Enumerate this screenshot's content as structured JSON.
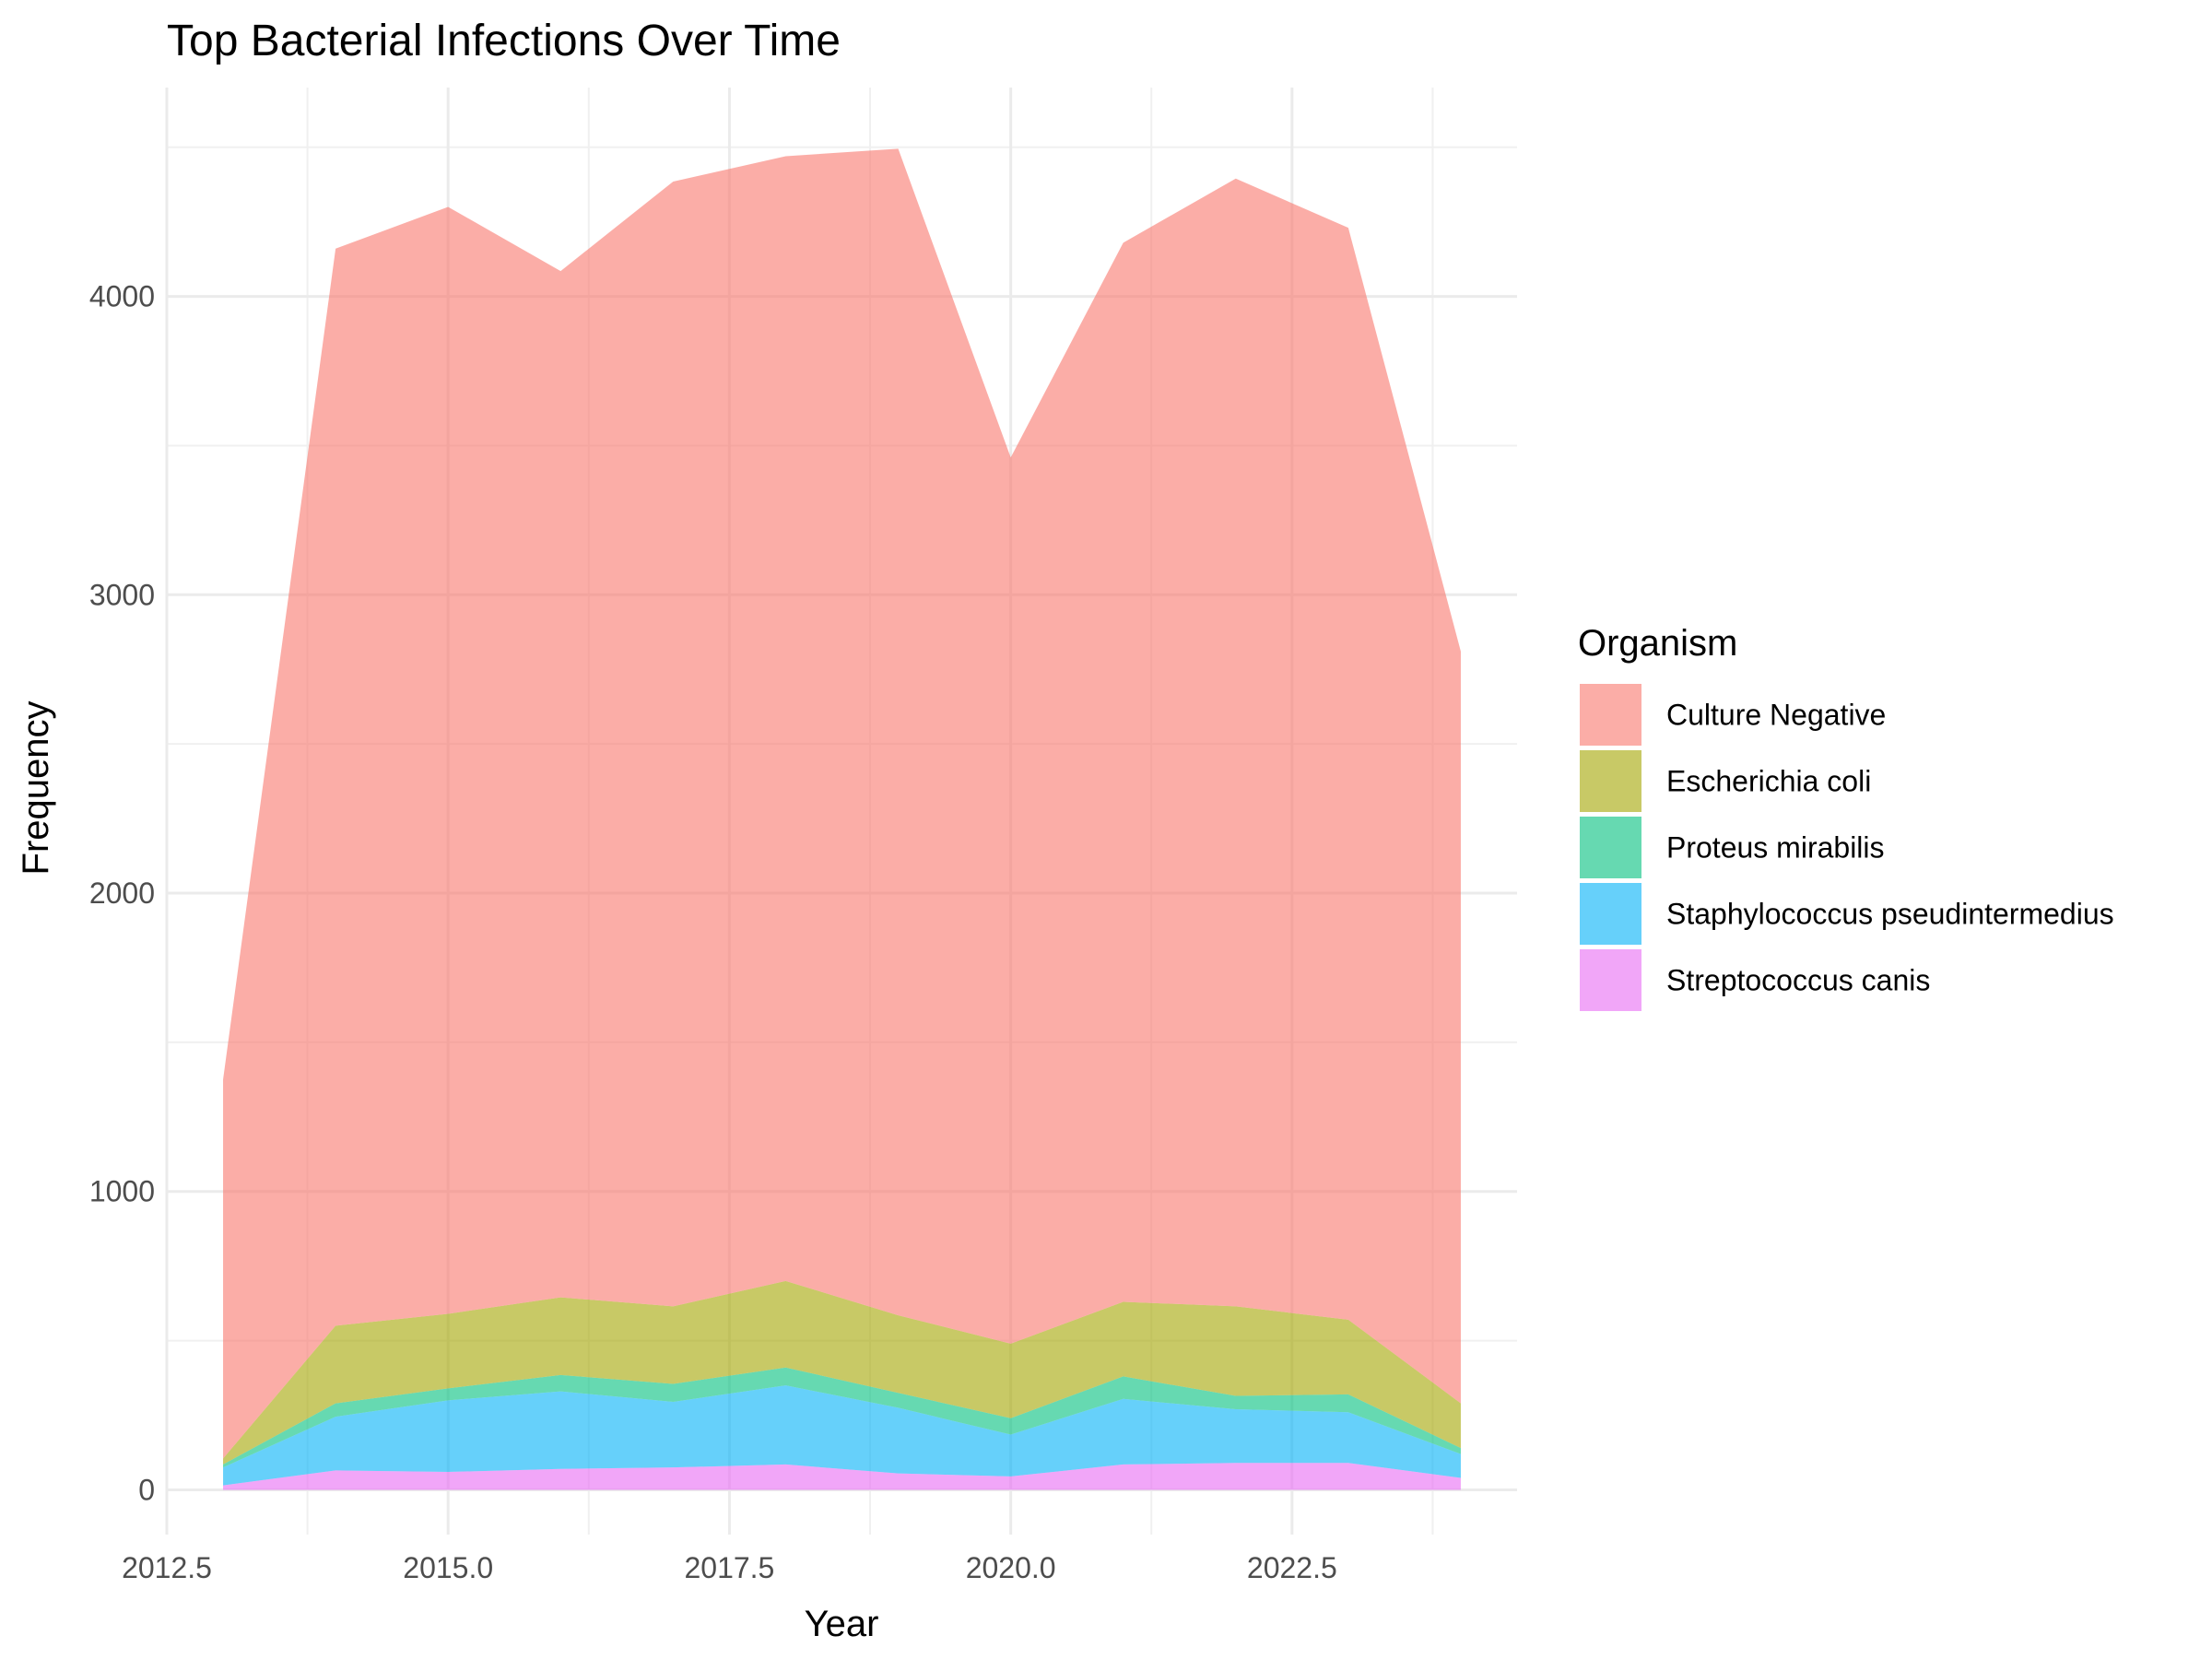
{
  "chart_data": {
    "type": "area",
    "stacked": true,
    "title": "Top Bacterial Infections Over Time",
    "xlabel": "Year",
    "ylabel": "Frequency",
    "xlim": [
      2012.5,
      2024.5
    ],
    "ylim": [
      -150,
      4700
    ],
    "x_ticks": [
      2012.5,
      2015.0,
      2017.5,
      2020.0,
      2022.5
    ],
    "x_tick_labels": [
      "2012.5",
      "2015.0",
      "2017.5",
      "2020.0",
      "2022.5"
    ],
    "y_ticks": [
      0,
      1000,
      2000,
      3000,
      4000
    ],
    "y_tick_labels": [
      "0",
      "1000",
      "2000",
      "3000",
      "4000"
    ],
    "grid": true,
    "legend": {
      "title": "Organism",
      "position": "right"
    },
    "x": [
      2013,
      2014,
      2015,
      2016,
      2017,
      2018,
      2019,
      2020,
      2021,
      2022,
      2023,
      2024
    ],
    "series": [
      {
        "name": "Culture Negative",
        "color": "#F8766D",
        "values": [
          1270,
          3610,
          3710,
          3440,
          3770,
          3770,
          3910,
          2970,
          3550,
          3780,
          3660,
          2520
        ]
      },
      {
        "name": "Escherichia coli",
        "color": "#A3A500",
        "values": [
          20,
          260,
          250,
          260,
          260,
          290,
          260,
          250,
          250,
          300,
          250,
          150
        ]
      },
      {
        "name": "Proteus mirabilis",
        "color": "#00BF7D",
        "values": [
          10,
          45,
          40,
          55,
          60,
          60,
          50,
          55,
          75,
          45,
          60,
          20
        ]
      },
      {
        "name": "Staphylococcus pseudintermedius",
        "color": "#00B0F6",
        "values": [
          60,
          180,
          240,
          260,
          220,
          265,
          220,
          140,
          220,
          180,
          170,
          80
        ]
      },
      {
        "name": "Streptococcus canis",
        "color": "#E76BF3",
        "values": [
          15,
          65,
          60,
          70,
          75,
          85,
          55,
          45,
          85,
          90,
          90,
          40
        ]
      }
    ]
  }
}
